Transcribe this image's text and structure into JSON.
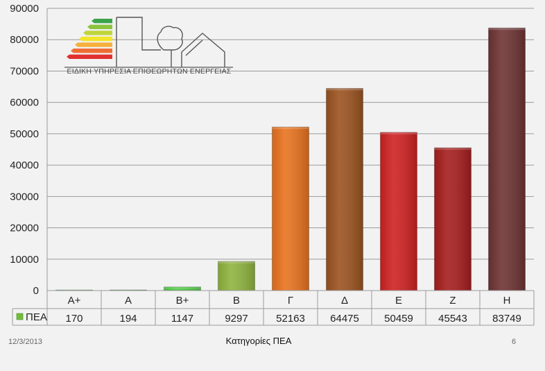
{
  "logo": {
    "text": "ΕΙΔΙΚΗ ΥΠΗΡΕΣΙΑ ΕΠΙΘΕΩΡΗΤΩΝ ΕΝΕΡΓΕΙΑΣ",
    "stripe_colors": [
      "#3aa34a",
      "#8cc43f",
      "#bfd63c",
      "#f2e52a",
      "#f6b13c",
      "#ee6d33",
      "#e0312f"
    ]
  },
  "chart_data": {
    "type": "bar",
    "categories": [
      "A+",
      "A",
      "B+",
      "B",
      "Γ",
      "Δ",
      "E",
      "Z",
      "H"
    ],
    "series": [
      {
        "name": "ΠΕΑ",
        "values": [
          170,
          194,
          1147,
          9297,
          52163,
          64475,
          50459,
          45543,
          83749
        ],
        "value_labels": [
          "170",
          "194",
          "1147",
          "9297",
          "52163",
          "64475",
          "50459",
          "45543",
          "83749"
        ]
      }
    ],
    "bar_colors": [
      "#2e9e3a",
      "#4dbb42",
      "#45c83a",
      "#8fb43f",
      "#e8731f",
      "#9b5320",
      "#cf2222",
      "#a61e1e",
      "#6e3333"
    ],
    "legend_color": "#6fbf3a",
    "ylim": [
      0,
      90000
    ],
    "yticks": [
      "0",
      "10000",
      "20000",
      "30000",
      "40000",
      "50000",
      "60000",
      "70000",
      "80000",
      "90000"
    ],
    "grid": true,
    "data_table": true
  },
  "footer": {
    "date": "12/3/2013",
    "title": "Κατηγορίες ΠΕΑ",
    "page": "6"
  }
}
